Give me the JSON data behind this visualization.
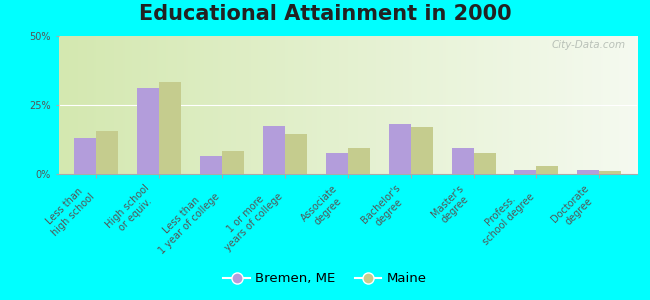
{
  "title": "Educational Attainment in 2000",
  "categories": [
    "Less than\nhigh school",
    "High school\nor equiv.",
    "Less than\n1 year of college",
    "1 or more\nyears of college",
    "Associate\ndegree",
    "Bachelor's\ndegree",
    "Master's\ndegree",
    "Profess.\nschool degree",
    "Doctorate\ndegree"
  ],
  "bremen_values": [
    13.0,
    31.0,
    6.5,
    17.5,
    7.5,
    18.0,
    9.5,
    1.5,
    1.5
  ],
  "maine_values": [
    15.5,
    33.5,
    8.5,
    14.5,
    9.5,
    17.0,
    7.5,
    3.0,
    1.2
  ],
  "bremen_color": "#b39ddb",
  "maine_color": "#c5cc8e",
  "outer_bg": "#00ffff",
  "ylim": [
    0,
    50
  ],
  "yticks": [
    0,
    25,
    50
  ],
  "ytick_labels": [
    "0%",
    "25%",
    "50%"
  ],
  "bar_width": 0.35,
  "legend_bremen": "Bremen, ME",
  "legend_maine": "Maine",
  "watermark": "City-Data.com",
  "title_fontsize": 15,
  "tick_fontsize": 7.0,
  "legend_fontsize": 9.5
}
